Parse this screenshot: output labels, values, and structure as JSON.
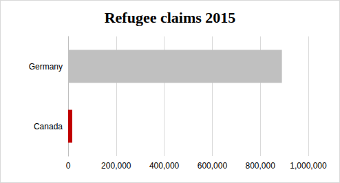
{
  "chart_data": {
    "type": "bar",
    "title": "Refugee claims 2015",
    "orientation": "horizontal",
    "categories": [
      "Germany",
      "Canada"
    ],
    "values": [
      890000,
      17000
    ],
    "colors": [
      "#c0c0c0",
      "#c00000"
    ],
    "xlim": [
      0,
      1000000
    ],
    "xticks": [
      0,
      {
        "value": 200000,
        "label": "200,000"
      },
      {
        "value": 400000,
        "label": "400,000"
      },
      {
        "value": 600000,
        "label": "600,000"
      },
      {
        "value": 800000,
        "label": "800,000"
      },
      {
        "value": 1000000,
        "label": "1,000,000"
      }
    ],
    "grid": true
  }
}
